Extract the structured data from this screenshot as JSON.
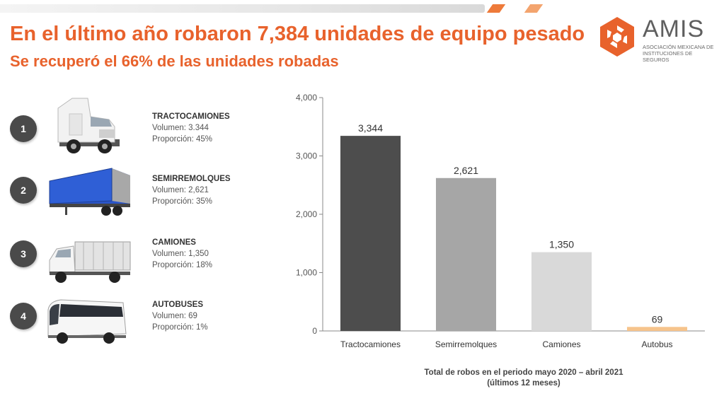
{
  "header": {
    "title": "En el último año robaron 7,384 unidades de equipo pesado",
    "subtitle": "Se recuperó el 66% de las unidades robadas"
  },
  "logo": {
    "name": "AMIS",
    "sub_line1": "ASOCIACIÓN MEXICANA DE",
    "sub_line2": "INSTITUCIONES DE SEGUROS",
    "color": "#e8622c"
  },
  "vehicles": [
    {
      "rank": "1",
      "name": "TRACTOCAMIONES",
      "volume": "Volumen: 3.344",
      "proportion": "Proporción: 45%",
      "icon": "tractor-truck-icon"
    },
    {
      "rank": "2",
      "name": "SEMIRREMOLQUES",
      "volume": "Volumen: 2,621",
      "proportion": "Proporción: 35%",
      "icon": "semitrailer-icon"
    },
    {
      "rank": "3",
      "name": "CAMIONES",
      "volume": "Volumen: 1,350",
      "proportion": "Proporción: 18%",
      "icon": "box-truck-icon"
    },
    {
      "rank": "4",
      "name": "AUTOBUSES",
      "volume": "Volumen: 69",
      "proportion": "Proporción: 1%",
      "icon": "bus-icon"
    }
  ],
  "chart_data": {
    "type": "bar",
    "categories": [
      "Tractocamiones",
      "Semirremolques",
      "Camiones",
      "Autobus"
    ],
    "values": [
      3344,
      2621,
      1350,
      69
    ],
    "value_labels": [
      "3,344",
      "2,621",
      "1,350",
      "69"
    ],
    "colors": [
      "#4d4d4d",
      "#a6a6a6",
      "#d9d9d9",
      "#f6c48c"
    ],
    "ylim": [
      0,
      4000
    ],
    "yticks": [
      0,
      1000,
      2000,
      3000,
      4000
    ],
    "ytick_labels": [
      "0",
      "1,000",
      "2,000",
      "3,000",
      "4,000"
    ],
    "grid": false,
    "caption_line1": "Total de robos en el periodo mayo 2020 – abril 2021",
    "caption_line2": "(últimos 12 meses)"
  }
}
